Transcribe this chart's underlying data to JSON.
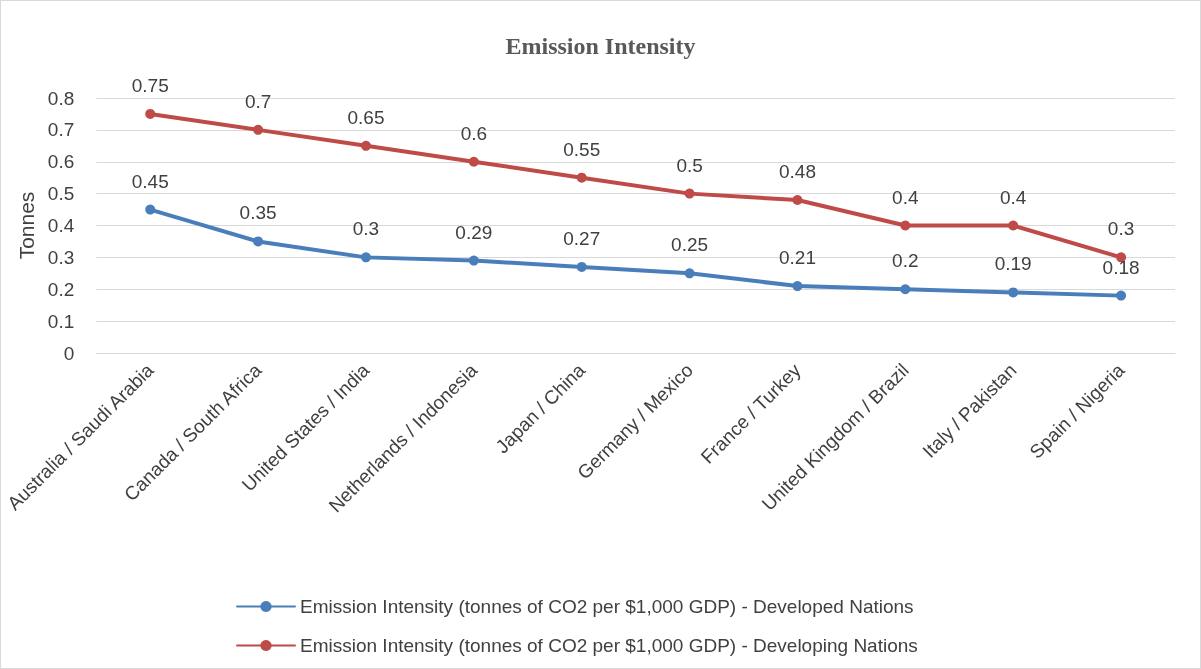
{
  "chart_data": {
    "type": "line",
    "title": "Emission Intensity",
    "ylabel": "Tonnes",
    "categories": [
      "Australia / Saudi Arabia",
      "Canada / South Africa",
      "United States / India",
      "Netherlands / Indonesia",
      "Japan / China",
      "Germany / Mexico",
      "France / Turkey",
      "United Kingdom / Brazil",
      "Italy / Pakistan",
      "Spain / Nigeria"
    ],
    "series": [
      {
        "name": "Emission Intensity (tonnes of CO2 per $1,000 GDP) - Developed Nations",
        "color": "#4a7ebb",
        "values": [
          0.45,
          0.35,
          0.3,
          0.29,
          0.27,
          0.25,
          0.21,
          0.2,
          0.19,
          0.18
        ]
      },
      {
        "name": "Emission Intensity (tonnes of CO2 per $1,000 GDP) - Developing Nations",
        "color": "#be4b48",
        "values": [
          0.75,
          0.7,
          0.65,
          0.6,
          0.55,
          0.5,
          0.48,
          0.4,
          0.4,
          0.3
        ]
      }
    ],
    "ylim": [
      0,
      0.8
    ],
    "yticks": [
      0,
      0.1,
      0.2,
      0.3,
      0.4,
      0.5,
      0.6,
      0.7,
      0.8
    ],
    "grid": "y",
    "legend": "bottom",
    "marker": "circle",
    "line_style": "solid",
    "data_labels": true
  }
}
